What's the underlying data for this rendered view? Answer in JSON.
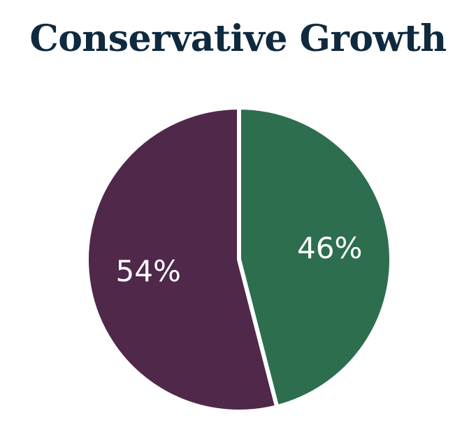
{
  "chart_data": {
    "type": "pie",
    "title": "Conservative Growth",
    "slices": [
      {
        "label": "46%",
        "value": 46,
        "color": "#2d6e4f"
      },
      {
        "label": "54%",
        "value": 54,
        "color": "#4f284a"
      }
    ],
    "start": "12 o'clock",
    "direction": "clockwise",
    "legend": "none"
  },
  "colors": {
    "title": "#0f2a3f",
    "background": "#ffffff",
    "separator": "#ffffff"
  }
}
